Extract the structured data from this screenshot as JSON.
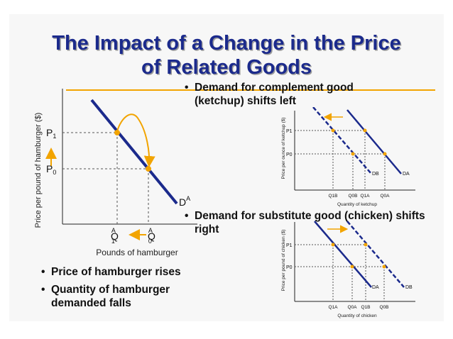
{
  "title": {
    "line1": "The Impact of a Change in the Price",
    "line2": "of Related Goods"
  },
  "colors": {
    "title": "#1b2a8c",
    "accent_rule": "#f2a400",
    "demand_line": "#1b2a8c",
    "arrow": "#f2a400"
  },
  "main_graph": {
    "ylabel": "Price per pound of hamburger ($)",
    "xlabel": "Pounds of hamburger",
    "p1": "P",
    "p1_sub": "1",
    "p0": "P",
    "p0_sub": "0",
    "q1": "Q",
    "q1_sup": "A",
    "q1_sub": "1",
    "q0": "Q",
    "q0_sup": "A",
    "q0_sub": "0",
    "curve": "D",
    "curve_sup": "A"
  },
  "bullets_left": [
    {
      "dot": "•",
      "text": "Price of hamburger rises"
    },
    {
      "dot": "•",
      "text": "Quantity of hamburger demanded falls"
    }
  ],
  "complement": {
    "bullet_dot": "•",
    "bullet": "Demand for complement good (ketchup) shifts left",
    "ylabel": "Price per ounce of ketchup ($)",
    "xlabel": "Quantity of ketchup",
    "p1": "P1",
    "p0": "P0",
    "q_labels": [
      "Q1B",
      "Q0B",
      "Q1A",
      "Q0A"
    ],
    "curve_b": "DB",
    "curve_a": "DA"
  },
  "substitute": {
    "bullet_dot": "•",
    "bullet": "Demand for substitute good (chicken) shifts right",
    "ylabel": "Price per pound of chicken ($)",
    "xlabel": "Quantity of chicken",
    "p1": "P1",
    "p0": "P0",
    "q_labels": [
      "Q1A",
      "Q0A",
      "Q1B",
      "Q0B"
    ],
    "curve_a": "DA",
    "curve_b": "DB"
  }
}
